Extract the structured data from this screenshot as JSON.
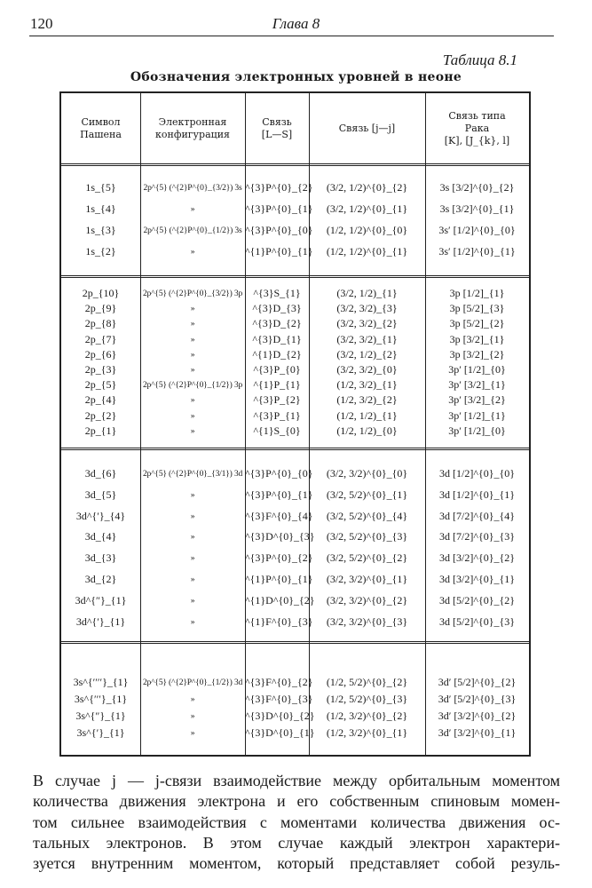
{
  "page": {
    "number": "120",
    "running_head": "Глава 8",
    "table_label": "Таблица 8.1",
    "table_title": "Обозначения электронных уровней в неоне"
  },
  "table": {
    "headers": [
      "Символ\nПашена",
      "Электронная\nконфигурация",
      "Связь\n[L—S]",
      "Связь [j—j]",
      "Связь типа\nРака\n[K], [J_{k}, l]"
    ],
    "groups": [
      [
        [
          "1s_{5}",
          "2p^{5} (^{2}P^{0}_{3/2}) 3s",
          "^{3}P^{0}_{2}",
          "(3/2, 1/2)^{0}_{2}",
          "3s [3/2]^{0}_{2}"
        ],
        [
          "1s_{4}",
          "»",
          "^{3}P^{0}_{1}",
          "(3/2, 1/2)^{0}_{1}",
          "3s [3/2]^{0}_{1}"
        ],
        [
          "1s_{3}",
          "2p^{5} (^{2}P^{0}_{1/2}) 3s",
          "^{3}P^{0}_{0}",
          "(1/2, 1/2)^{0}_{0}",
          "3s′ [1/2]^{0}_{0}"
        ],
        [
          "1s_{2}",
          "»",
          "^{1}P^{0}_{1}",
          "(1/2, 1/2)^{0}_{1}",
          "3s′ [1/2]^{0}_{1}"
        ]
      ],
      [
        [
          "2p_{10}",
          "2p^{5} (^{2}P^{0}_{3/2}) 3p",
          "^{3}S_{1}",
          "(3/2, 1/2)_{1}",
          "3p [1/2]_{1}"
        ],
        [
          "2p_{9}",
          "»",
          "^{3}D_{3}",
          "(3/2, 3/2)_{3}",
          "3p [5/2]_{3}"
        ],
        [
          "2p_{8}",
          "»",
          "^{3}D_{2}",
          "(3/2, 3/2)_{2}",
          "3p [5/2]_{2}"
        ],
        [
          "2p_{7}",
          "»",
          "^{3}D_{1}",
          "(3/2, 3/2)_{1}",
          "3p [3/2]_{1}"
        ],
        [
          "2p_{6}",
          "»",
          "^{1}D_{2}",
          "(3/2, 1/2)_{2}",
          "3p [3/2]_{2}"
        ],
        [
          "2p_{3}",
          "»",
          "^{3}P_{0}",
          "(3/2, 3/2)_{0}",
          "3p′ [1/2]_{0}"
        ],
        [
          "2p_{5}",
          "2p^{5} (^{2}P^{0}_{1/2}) 3p",
          "^{1}P_{1}",
          "(1/2, 3/2)_{1}",
          "3p′ [3/2]_{1}"
        ],
        [
          "2p_{4}",
          "»",
          "^{3}P_{2}",
          "(1/2, 3/2)_{2}",
          "3p′ [3/2]_{2}"
        ],
        [
          "2p_{2}",
          "»",
          "^{3}P_{1}",
          "(1/2, 1/2)_{1}",
          "3p′ [1/2]_{1}"
        ],
        [
          "2p_{1}",
          "»",
          "^{1}S_{0}",
          "(1/2, 1/2)_{0}",
          "3p′ [1/2]_{0}"
        ]
      ],
      [
        [
          "3d_{6}",
          "2p^{5} (^{2}P^{0}_{3/1}) 3d",
          "^{3}P^{0}_{0}",
          "(3/2, 3/2)^{0}_{0}",
          "3d [1/2]^{0}_{0}"
        ],
        [
          "3d_{5}",
          "»",
          "^{3}P^{0}_{1}",
          "(3/2, 5/2)^{0}_{1}",
          "3d [1/2]^{0}_{1}"
        ],
        [
          "3d^{′}_{4}",
          "»",
          "^{3}F^{0}_{4}",
          "(3/2, 5/2)^{0}_{4}",
          "3d [7/2]^{0}_{4}"
        ],
        [
          "3d_{4}",
          "»",
          "^{3}D^{0}_{3}",
          "(3/2, 5/2)^{0}_{3}",
          "3d [7/2]^{0}_{3}"
        ],
        [
          "3d_{3}",
          "»",
          "^{3}P^{0}_{2}",
          "(3/2, 5/2)^{0}_{2}",
          "3d [3/2]^{0}_{2}"
        ],
        [
          "3d_{2}",
          "»",
          "^{1}P^{0}_{1}",
          "(3/2, 3/2)^{0}_{1}",
          "3d [3/2]^{0}_{1}"
        ],
        [
          "3d^{″}_{1}",
          "»",
          "^{1}D^{0}_{2}",
          "(3/2, 3/2)^{0}_{2}",
          "3d [5/2]^{0}_{2}"
        ],
        [
          "3d^{′}_{1}",
          "»",
          "^{1}F^{0}_{3}",
          "(3/2, 3/2)^{0}_{3}",
          "3d [5/2]^{0}_{3}"
        ]
      ],
      [
        [
          "3s^{′′′′}_{1}",
          "2p^{5} (^{2}P^{0}_{1/2}) 3d",
          "^{3}F^{0}_{2}",
          "(1/2, 5/2)^{0}_{2}",
          "3d′ [5/2]^{0}_{2}"
        ],
        [
          "3s^{′′′}_{1}",
          "»",
          "^{3}F^{0}_{3}",
          "(1/2, 5/2)^{0}_{3}",
          "3d′ [5/2]^{0}_{3}"
        ],
        [
          "3s^{″}_{1}",
          "»",
          "^{3}D^{0}_{2}",
          "(1/2, 3/2)^{0}_{2}",
          "3d′ [3/2]^{0}_{2}"
        ],
        [
          "3s^{′}_{1}",
          "»",
          "^{3}D^{0}_{1}",
          "(1/2, 3/2)^{0}_{1}",
          "3d′ [3/2]^{0}_{1}"
        ]
      ]
    ]
  },
  "paragraph": {
    "lines": [
      "В случае j — j-связи взаимодействие между орбитальным моментом",
      "количества движения электрона и его собственным спиновым момен-",
      "том сильнее взаимодействия с моментами количества движения ос-",
      "тальных электронов. В этом случае каждый электрон характери-",
      "зуется внутренним моментом, который представляет собой резуль-"
    ]
  }
}
